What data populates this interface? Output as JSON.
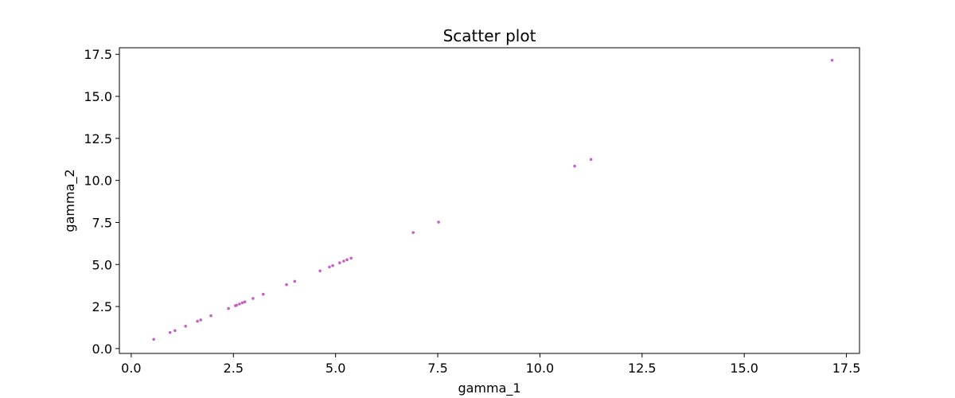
{
  "chart_data": {
    "type": "scatter",
    "title": "Scatter plot",
    "xlabel": "gamma_1",
    "ylabel": "gamma_2",
    "xlim": [
      -0.29,
      17.82
    ],
    "ylim": [
      -0.29,
      17.89
    ],
    "xticks": [
      0.0,
      2.5,
      5.0,
      7.5,
      10.0,
      12.5,
      15.0,
      17.5
    ],
    "xtick_labels": [
      "0.0",
      "2.5",
      "5.0",
      "7.5",
      "10.0",
      "12.5",
      "15.0",
      "17.5"
    ],
    "yticks": [
      0.0,
      2.5,
      5.0,
      7.5,
      10.0,
      12.5,
      15.0,
      17.5
    ],
    "ytick_labels": [
      "0.0",
      "2.5",
      "5.0",
      "7.5",
      "10.0",
      "12.5",
      "15.0",
      "17.5"
    ],
    "grid": false,
    "marker_color": "#c45fc4",
    "series": [
      {
        "x": [
          0.55,
          0.95,
          1.07,
          1.33,
          1.62,
          1.7,
          1.95,
          2.38,
          2.55,
          2.58,
          2.65,
          2.72,
          2.78,
          2.98,
          3.23,
          3.8,
          4.0,
          4.62,
          4.85,
          4.93,
          5.1,
          5.2,
          5.28,
          5.38,
          6.9,
          7.52,
          10.85,
          11.25,
          17.15
        ],
        "y": [
          0.55,
          0.95,
          1.07,
          1.33,
          1.62,
          1.7,
          1.95,
          2.38,
          2.55,
          2.58,
          2.65,
          2.72,
          2.78,
          2.98,
          3.23,
          3.8,
          4.0,
          4.62,
          4.85,
          4.93,
          5.1,
          5.2,
          5.28,
          5.38,
          6.9,
          7.52,
          10.85,
          11.25,
          17.15
        ]
      }
    ]
  }
}
